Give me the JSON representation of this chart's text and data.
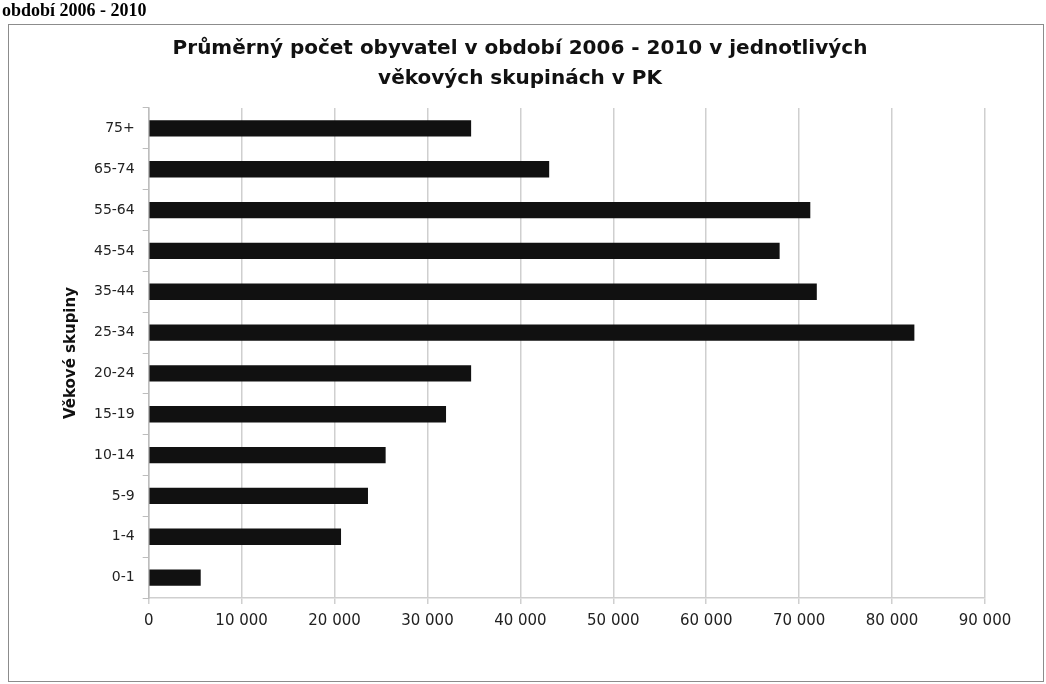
{
  "chart_data": {
    "type": "bar",
    "orientation": "horizontal",
    "title": "Průměrný počet obyvatel v období 2006 - 2010 v jednotlivých věkových skupinách v PK",
    "ylabel": "Věkové skupiny",
    "annotations": [
      "období 2006 - 2010"
    ],
    "categories": [
      "75+",
      "65-74",
      "55-64",
      "45-54",
      "35-44",
      "25-34",
      "20-24",
      "15-19",
      "10-14",
      "5-9",
      "1-4",
      "0-1"
    ],
    "values": [
      34700,
      43100,
      71200,
      67900,
      71900,
      82400,
      34700,
      32000,
      25500,
      23600,
      20700,
      5600
    ],
    "color": "#111111",
    "xlim": [
      0,
      90000
    ],
    "xticks": [
      0,
      {
        "value": 10000,
        "label": "10 000"
      },
      {
        "value": 20000,
        "label": "20 000"
      },
      {
        "value": 30000,
        "label": "30 000"
      },
      {
        "value": 40000,
        "label": "40 000"
      },
      {
        "value": 50000,
        "label": "50 000"
      },
      {
        "value": 60000,
        "label": "60 000"
      },
      {
        "value": 70000,
        "label": "70 000"
      },
      {
        "value": 80000,
        "label": "80 000"
      },
      {
        "value": 90000,
        "label": "90 000"
      }
    ],
    "grid": "x"
  }
}
